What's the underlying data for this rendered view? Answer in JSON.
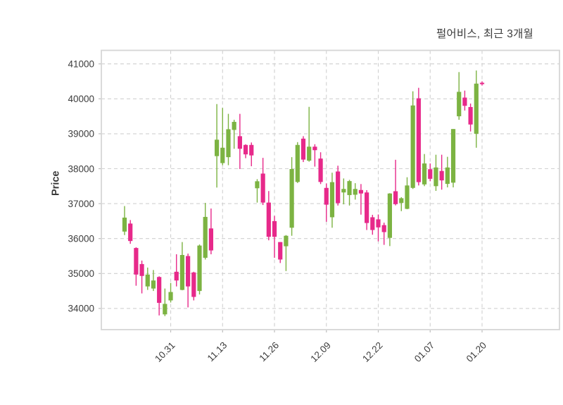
{
  "title": "펄어비스, 최근 3개월",
  "chart_data": {
    "type": "candlestick",
    "title": "펄어비스, 최근 3개월",
    "ylabel": "Price",
    "y_ticks": [
      34000,
      35000,
      36000,
      37000,
      38000,
      39000,
      40000,
      41000
    ],
    "ylim": [
      33400,
      41400
    ],
    "x_tick_labels": [
      "10.31",
      "11.13",
      "11.26",
      "12.09",
      "12.22",
      "01.07",
      "01.20"
    ],
    "x_tick_candle_indices": [
      8,
      17,
      26,
      35,
      44,
      53,
      62
    ],
    "grid": "dashed",
    "legend_position": "none",
    "colors": {
      "up": "#7cb342",
      "down": "#e7298a",
      "grid": "#d0d0d0",
      "border": "#d6d6d6",
      "tick_text": "#3c3c3c"
    },
    "ohlc_note": "each candle is [open, high, low, close]",
    "candles": [
      [
        36200,
        36930,
        36100,
        36600
      ],
      [
        36430,
        36530,
        35850,
        35930
      ],
      [
        35730,
        35750,
        34650,
        34970
      ],
      [
        35270,
        35370,
        34430,
        34930
      ],
      [
        34630,
        35170,
        34530,
        34970
      ],
      [
        34570,
        35100,
        34500,
        34800
      ],
      [
        34900,
        34920,
        33800,
        34160
      ],
      [
        33830,
        34570,
        33780,
        34130
      ],
      [
        34230,
        34730,
        34170,
        34470
      ],
      [
        35050,
        35550,
        34630,
        34800
      ],
      [
        34530,
        35900,
        34520,
        35530
      ],
      [
        35500,
        35570,
        34030,
        34630
      ],
      [
        35030,
        35050,
        34230,
        34330
      ],
      [
        34500,
        35830,
        34400,
        35800
      ],
      [
        35450,
        37020,
        35400,
        36620
      ],
      [
        36290,
        36860,
        35550,
        35660
      ],
      [
        38360,
        39850,
        37460,
        38830
      ],
      [
        38160,
        39740,
        38100,
        38600
      ],
      [
        38330,
        39570,
        38100,
        39130
      ],
      [
        39110,
        39400,
        38570,
        39340
      ],
      [
        38930,
        39570,
        37990,
        38570
      ],
      [
        38680,
        38700,
        38300,
        38410
      ],
      [
        38680,
        38750,
        38070,
        38380
      ],
      [
        37440,
        37700,
        37030,
        37640
      ],
      [
        37860,
        38310,
        36960,
        37030
      ],
      [
        37030,
        37360,
        35950,
        36050
      ],
      [
        36500,
        36650,
        35450,
        36050
      ],
      [
        35900,
        35900,
        35300,
        35400
      ],
      [
        35780,
        36100,
        35070,
        36080
      ],
      [
        36310,
        38330,
        36080,
        37990
      ],
      [
        37620,
        38760,
        37590,
        38680
      ],
      [
        38860,
        38930,
        38190,
        38260
      ],
      [
        38230,
        39770,
        38200,
        38630
      ],
      [
        38630,
        38700,
        38060,
        38530
      ],
      [
        38290,
        38470,
        37560,
        37620
      ],
      [
        37450,
        37580,
        36480,
        36970
      ],
      [
        36610,
        37885,
        36310,
        37615
      ],
      [
        37920,
        38085,
        36945,
        37015
      ],
      [
        37320,
        37720,
        36980,
        37420
      ],
      [
        37245,
        37680,
        36945,
        37645
      ],
      [
        37255,
        37585,
        37115,
        37420
      ],
      [
        37390,
        37560,
        36685,
        37290
      ],
      [
        37320,
        37385,
        36245,
        36445
      ],
      [
        36610,
        36680,
        36110,
        36245
      ],
      [
        36550,
        36690,
        35920,
        36320
      ],
      [
        36385,
        36455,
        35820,
        36185
      ],
      [
        36020,
        37300,
        35785,
        37290
      ],
      [
        37355,
        38255,
        36950,
        36985
      ],
      [
        37020,
        37185,
        36785,
        37155
      ],
      [
        36850,
        37755,
        36840,
        37520
      ],
      [
        37450,
        40215,
        37420,
        39810
      ],
      [
        40015,
        40315,
        37520,
        37615
      ],
      [
        37550,
        38420,
        37500,
        38150
      ],
      [
        37985,
        38150,
        37640,
        37710
      ],
      [
        37500,
        38400,
        37365,
        38035
      ],
      [
        37935,
        38400,
        37400,
        37665
      ],
      [
        37565,
        38340,
        37465,
        38035
      ],
      [
        37600,
        39135,
        37465,
        39135
      ],
      [
        39500,
        40765,
        39400,
        40200
      ],
      [
        40035,
        40235,
        39665,
        39800
      ],
      [
        39765,
        39865,
        39065,
        39265
      ],
      [
        39000,
        40810,
        38600,
        40435
      ],
      [
        40460,
        40500,
        40380,
        40420
      ]
    ]
  }
}
